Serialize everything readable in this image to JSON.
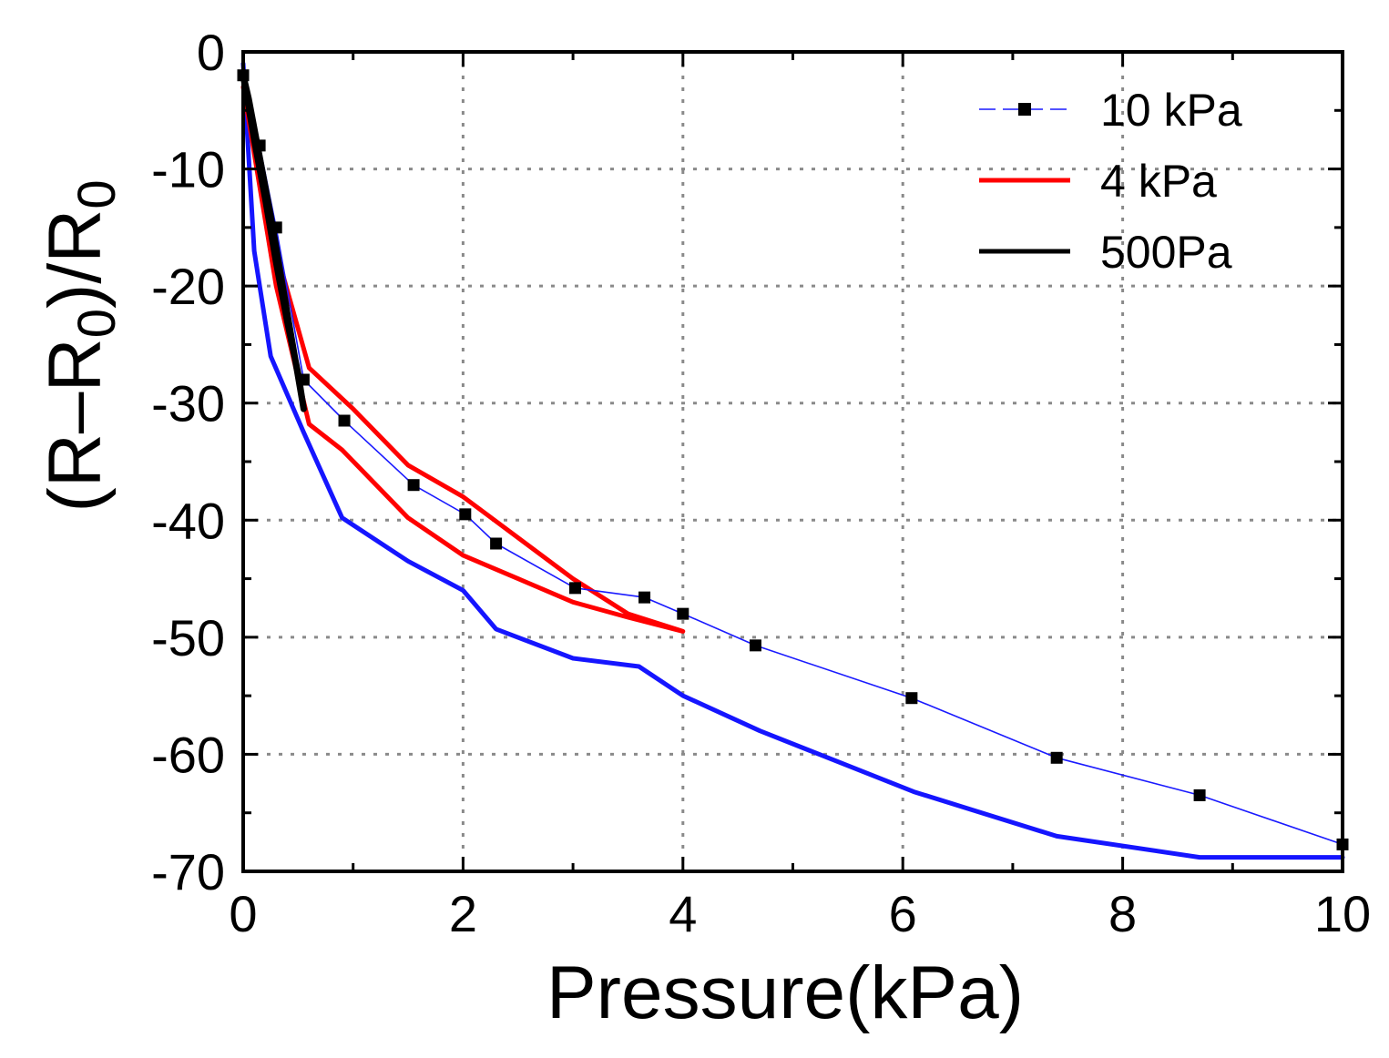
{
  "chart_data": {
    "type": "line",
    "title": "",
    "xlabel": "Pressure(kPa)",
    "ylabel": {
      "open": "(R",
      "minus": "–R",
      "sub1": "0",
      "mid": ")/R",
      "sub2": "0"
    },
    "xlim": [
      0,
      10
    ],
    "ylim": [
      -70,
      0
    ],
    "x_ticks": [
      0,
      2,
      4,
      6,
      8,
      10
    ],
    "x_tick_labels": [
      "0",
      "2",
      "4",
      "6",
      "8",
      "10"
    ],
    "y_ticks": [
      0,
      -10,
      -20,
      -30,
      -40,
      -50,
      -60,
      -70
    ],
    "y_tick_labels": [
      "0",
      "-10",
      "-20",
      "-30",
      "-40",
      "-50",
      "-60",
      "-70"
    ],
    "grid": true,
    "legend_position": "top-right",
    "series": [
      {
        "name": "10 kPa",
        "style": "marker-line",
        "color": "#1a1aff",
        "marker_color": "#000000",
        "x": [
          0.0,
          0.15,
          0.3,
          0.55,
          0.92,
          1.55,
          2.02,
          2.3,
          3.02,
          3.65,
          4.0,
          4.66,
          6.08,
          7.4,
          8.7,
          10.0
        ],
        "y": [
          -2.0,
          -8.0,
          -15.0,
          -28.0,
          -31.5,
          -37.0,
          -39.5,
          -42.0,
          -45.8,
          -46.6,
          -48.0,
          -50.7,
          -55.2,
          -60.3,
          -63.5,
          -67.7
        ]
      },
      {
        "name": "4 kPa",
        "style": "line",
        "color": "#ff0000",
        "x": [
          0.0,
          0.3,
          0.6,
          1.0,
          1.5,
          2.0,
          2.5,
          3.0,
          3.5,
          4.0,
          3.5,
          3.0,
          2.5,
          2.0,
          1.5,
          0.9,
          0.6,
          0.3,
          0.0
        ],
        "y": [
          -3.0,
          -17.0,
          -27.0,
          -30.5,
          -35.3,
          -38.0,
          -41.5,
          -45.0,
          -48.0,
          -49.5,
          -48.3,
          -47.0,
          -45.0,
          -43.0,
          -39.8,
          -34.0,
          -31.8,
          -20.0,
          -3.0
        ]
      },
      {
        "name": "500Pa",
        "style": "line",
        "color": "#000000",
        "x": [
          0.0,
          0.1,
          0.2,
          0.3,
          0.4,
          0.5,
          0.55,
          0.45,
          0.35,
          0.25,
          0.15,
          0.05,
          0.0
        ],
        "y": [
          -2.0,
          -7.5,
          -12.5,
          -18.0,
          -23.0,
          -27.5,
          -30.5,
          -25.0,
          -19.5,
          -14.0,
          -9.0,
          -4.0,
          -2.0
        ]
      },
      {
        "name": "",
        "style": "line",
        "color": "#1515ff",
        "x": [
          0.0,
          0.1,
          0.25,
          0.55,
          0.9,
          1.5,
          2.0,
          2.3,
          3.0,
          3.6,
          4.0,
          4.7,
          6.1,
          7.4,
          8.7,
          10.0
        ],
        "y": [
          -1.0,
          -17.0,
          -26.0,
          -32.5,
          -39.8,
          -43.5,
          -46.0,
          -49.3,
          -51.8,
          -52.5,
          -55.0,
          -58.0,
          -63.2,
          -67.0,
          -68.8,
          -68.8
        ]
      }
    ]
  }
}
